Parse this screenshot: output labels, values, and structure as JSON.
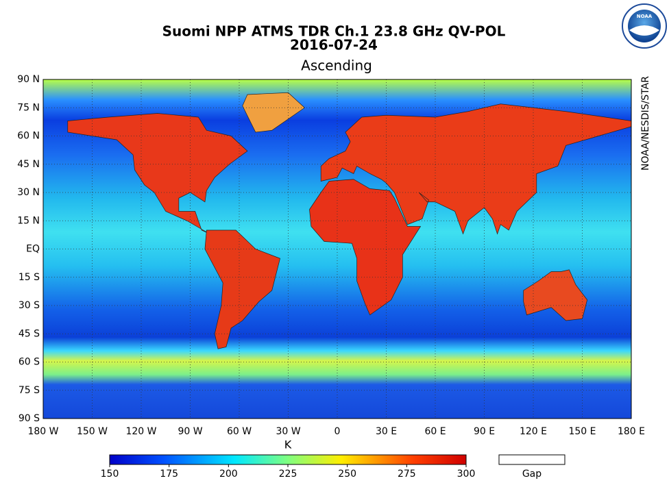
{
  "header": {
    "title": "Suomi NPP ATMS TDR Ch.1 23.8 GHz QV-POL",
    "date": "2016-07-24",
    "subtitle": "Ascending"
  },
  "credit": "NOAA/NESDIS/STAR",
  "logo_text": "NOAA",
  "map": {
    "lon_lim": [
      -180,
      180
    ],
    "lat_lim": [
      -90,
      90
    ],
    "lat_ticks": [
      {
        "value": 90,
        "label": "90 N"
      },
      {
        "value": 75,
        "label": "75 N"
      },
      {
        "value": 60,
        "label": "60 N"
      },
      {
        "value": 45,
        "label": "45 N"
      },
      {
        "value": 30,
        "label": "30 N"
      },
      {
        "value": 15,
        "label": "15 N"
      },
      {
        "value": 0,
        "label": "EQ"
      },
      {
        "value": -15,
        "label": "15 S"
      },
      {
        "value": -30,
        "label": "30 S"
      },
      {
        "value": -45,
        "label": "45 S"
      },
      {
        "value": -60,
        "label": "60 S"
      },
      {
        "value": -75,
        "label": "75 S"
      },
      {
        "value": -90,
        "label": "90 S"
      }
    ],
    "lon_ticks": [
      {
        "value": -180,
        "label": "180 W"
      },
      {
        "value": -150,
        "label": "150 W"
      },
      {
        "value": -120,
        "label": "120 W"
      },
      {
        "value": -90,
        "label": "90 W"
      },
      {
        "value": -60,
        "label": "60 W"
      },
      {
        "value": -30,
        "label": "30 W"
      },
      0,
      {
        "value": 30,
        "label": "30 E"
      },
      {
        "value": 60,
        "label": "60 E"
      },
      {
        "value": 90,
        "label": "90 E"
      },
      {
        "value": 120,
        "label": "120 E"
      },
      {
        "value": 150,
        "label": "150 E"
      },
      {
        "value": 180,
        "label": "180 E"
      }
    ]
  },
  "colorbar": {
    "label": "K",
    "lim": [
      150,
      300
    ],
    "ticks": [
      150,
      175,
      200,
      225,
      250,
      275,
      300
    ],
    "gap_label": "Gap"
  }
}
